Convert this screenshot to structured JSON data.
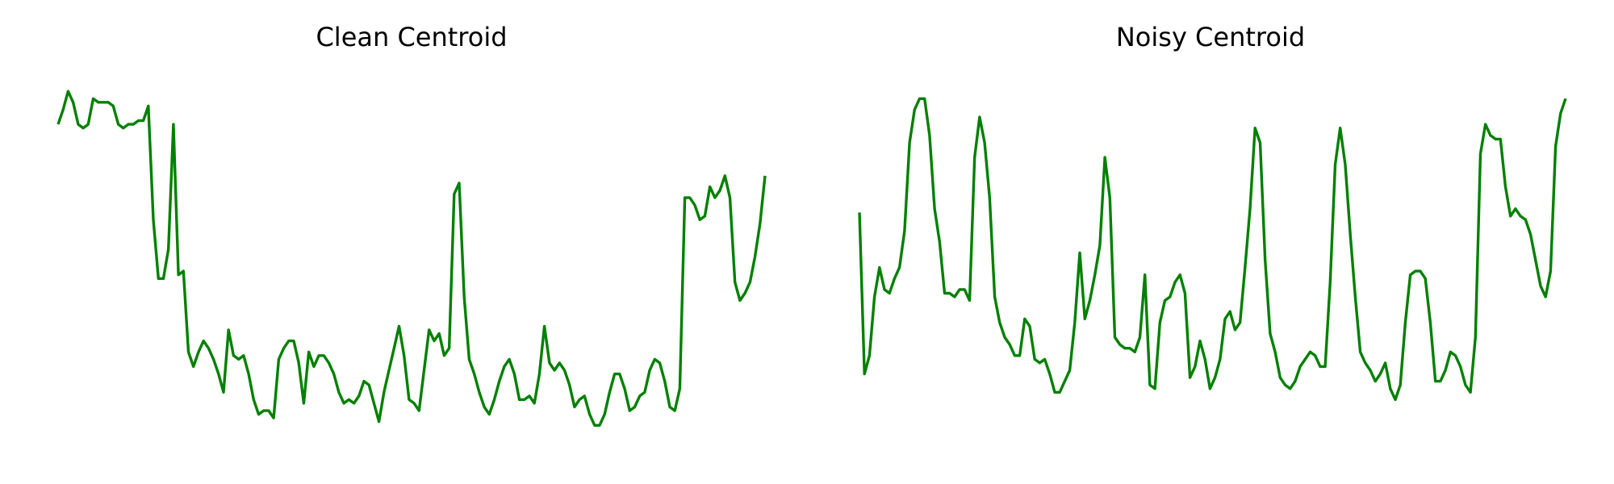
{
  "chart_data": [
    {
      "type": "line",
      "title": "Clean Centroid",
      "xlabel": "",
      "ylabel": "",
      "grid": false,
      "axes_visible": false,
      "color": "#008000",
      "ylim": [
        0,
        1
      ],
      "values": [
        0.87,
        0.91,
        0.96,
        0.93,
        0.87,
        0.86,
        0.87,
        0.94,
        0.93,
        0.93,
        0.93,
        0.92,
        0.87,
        0.86,
        0.87,
        0.87,
        0.88,
        0.88,
        0.92,
        0.61,
        0.45,
        0.45,
        0.53,
        0.87,
        0.46,
        0.47,
        0.25,
        0.21,
        0.25,
        0.28,
        0.26,
        0.23,
        0.19,
        0.14,
        0.31,
        0.24,
        0.23,
        0.24,
        0.19,
        0.12,
        0.08,
        0.09,
        0.09,
        0.07,
        0.23,
        0.26,
        0.28,
        0.28,
        0.22,
        0.11,
        0.25,
        0.21,
        0.24,
        0.24,
        0.22,
        0.19,
        0.14,
        0.11,
        0.12,
        0.11,
        0.13,
        0.17,
        0.16,
        0.11,
        0.06,
        0.14,
        0.2,
        0.26,
        0.32,
        0.24,
        0.12,
        0.11,
        0.09,
        0.2,
        0.31,
        0.28,
        0.3,
        0.24,
        0.26,
        0.68,
        0.71,
        0.4,
        0.23,
        0.19,
        0.14,
        0.1,
        0.08,
        0.12,
        0.17,
        0.21,
        0.23,
        0.19,
        0.12,
        0.12,
        0.13,
        0.11,
        0.19,
        0.32,
        0.22,
        0.2,
        0.22,
        0.2,
        0.16,
        0.1,
        0.12,
        0.13,
        0.08,
        0.05,
        0.05,
        0.08,
        0.14,
        0.19,
        0.19,
        0.15,
        0.09,
        0.1,
        0.13,
        0.14,
        0.2,
        0.23,
        0.22,
        0.17,
        0.1,
        0.09,
        0.15,
        0.67,
        0.67,
        0.65,
        0.61,
        0.62,
        0.7,
        0.67,
        0.69,
        0.73,
        0.67,
        0.44,
        0.39,
        0.41,
        0.44,
        0.51,
        0.6,
        0.73
      ]
    },
    {
      "type": "line",
      "title": "Noisy Centroid",
      "xlabel": "",
      "ylabel": "",
      "grid": false,
      "axes_visible": false,
      "color": "#008000",
      "ylim": [
        0,
        1
      ],
      "values": [
        0.63,
        0.19,
        0.24,
        0.4,
        0.48,
        0.42,
        0.41,
        0.45,
        0.48,
        0.58,
        0.82,
        0.91,
        0.94,
        0.94,
        0.84,
        0.64,
        0.55,
        0.41,
        0.41,
        0.4,
        0.42,
        0.42,
        0.39,
        0.78,
        0.89,
        0.82,
        0.67,
        0.4,
        0.33,
        0.29,
        0.27,
        0.24,
        0.24,
        0.34,
        0.32,
        0.23,
        0.22,
        0.23,
        0.19,
        0.14,
        0.14,
        0.17,
        0.2,
        0.33,
        0.52,
        0.34,
        0.39,
        0.46,
        0.54,
        0.78,
        0.67,
        0.29,
        0.27,
        0.26,
        0.26,
        0.25,
        0.29,
        0.46,
        0.16,
        0.15,
        0.33,
        0.39,
        0.4,
        0.44,
        0.46,
        0.41,
        0.18,
        0.21,
        0.28,
        0.23,
        0.15,
        0.18,
        0.23,
        0.34,
        0.36,
        0.31,
        0.33,
        0.48,
        0.64,
        0.86,
        0.82,
        0.5,
        0.3,
        0.25,
        0.18,
        0.16,
        0.15,
        0.17,
        0.21,
        0.23,
        0.25,
        0.24,
        0.21,
        0.21,
        0.44,
        0.76,
        0.86,
        0.76,
        0.57,
        0.4,
        0.25,
        0.22,
        0.2,
        0.17,
        0.19,
        0.22,
        0.15,
        0.12,
        0.16,
        0.33,
        0.46,
        0.47,
        0.47,
        0.45,
        0.33,
        0.17,
        0.17,
        0.2,
        0.25,
        0.24,
        0.21,
        0.16,
        0.14,
        0.29,
        0.79,
        0.87,
        0.84,
        0.83,
        0.83,
        0.7,
        0.62,
        0.64,
        0.62,
        0.61,
        0.57,
        0.5,
        0.43,
        0.4,
        0.47,
        0.81,
        0.9,
        0.94
      ]
    }
  ]
}
